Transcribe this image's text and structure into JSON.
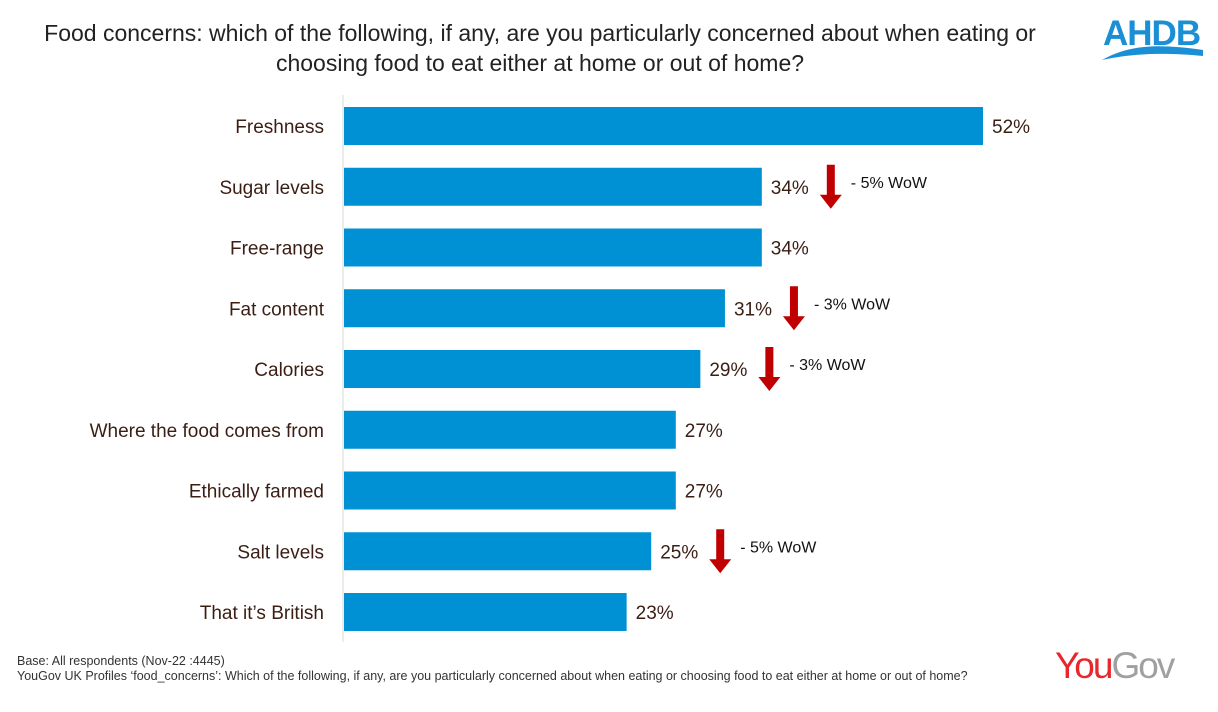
{
  "title": "Food concerns: which of the following, if any, are you particularly concerned about when eating or choosing food to eat either at home or out of home?",
  "logos": {
    "top_right": "AHDB",
    "bottom_right_you": "You",
    "bottom_right_gov": "Gov"
  },
  "footer": {
    "base": "Base: All respondents (Nov-22 :4445)",
    "question": "YouGov UK Profiles ‘food_concerns’: Which of the following, if any, are you particularly concerned about when eating or choosing food to eat either at home or out of home?"
  },
  "chart_data": {
    "type": "bar",
    "orientation": "horizontal",
    "categories": [
      "Freshness",
      "Sugar levels",
      "Free-range",
      "Fat content",
      "Calories",
      "Where the food comes from",
      "Ethically farmed",
      "Salt levels",
      "That it’s British"
    ],
    "values": [
      52,
      34,
      34,
      31,
      29,
      27,
      27,
      25,
      23
    ],
    "value_labels": [
      "52%",
      "34%",
      "34%",
      "31%",
      "29%",
      "27%",
      "27%",
      "25%",
      "23%"
    ],
    "annotations": [
      {
        "category": "Sugar levels",
        "text": "- 5% WoW",
        "direction": "down"
      },
      {
        "category": "Fat content",
        "text": "- 3% WoW",
        "direction": "down"
      },
      {
        "category": "Calories",
        "text": "- 3% WoW",
        "direction": "down"
      },
      {
        "category": "Salt levels",
        "text": "- 5% WoW",
        "direction": "down"
      }
    ],
    "xlim": [
      0,
      52
    ],
    "grid": false,
    "colors": {
      "bar": "#0090d4",
      "arrow": "#c00000",
      "text": "#3a1e14"
    }
  }
}
